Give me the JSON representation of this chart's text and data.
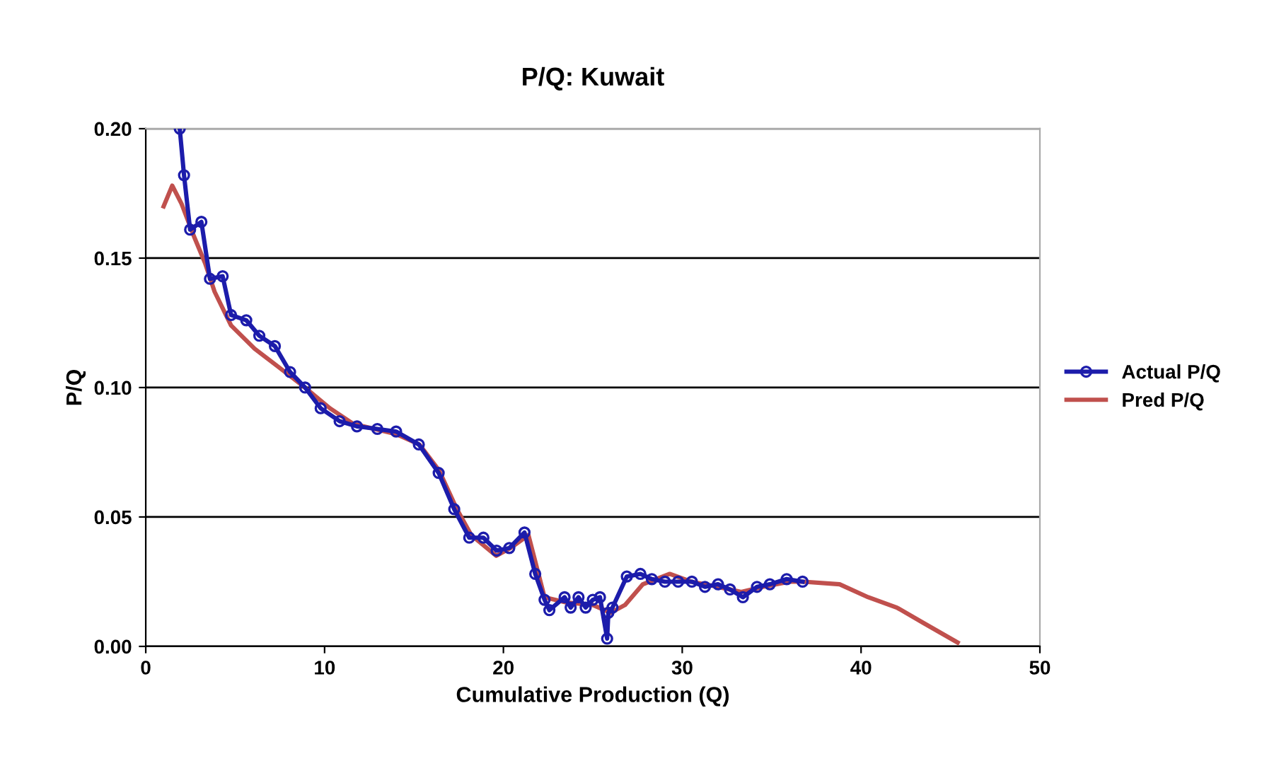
{
  "chart_data": {
    "type": "line",
    "title": "P/Q: Kuwait",
    "xlabel": "Cumulative Production (Q)",
    "ylabel": "P/Q",
    "xlim": [
      0,
      50
    ],
    "xticks": [
      0,
      10,
      20,
      30,
      40,
      50
    ],
    "ylim": [
      0,
      0.2
    ],
    "yticks": [
      {
        "value": 0,
        "label": "0.00"
      },
      {
        "value": 0.05,
        "label": "0.05"
      },
      {
        "value": 0.1,
        "label": "0.10"
      },
      {
        "value": 0.15,
        "label": "0.15"
      },
      {
        "value": 0.2,
        "label": "0.20"
      }
    ],
    "grid": "y",
    "legend": "right",
    "series": [
      {
        "name": "Actual P/Q",
        "color": "#1c1cab",
        "marker": "circle",
        "x": [
          1.9,
          2.14,
          2.48,
          3.11,
          3.59,
          4.3,
          4.77,
          5.62,
          6.35,
          7.22,
          8.07,
          8.91,
          9.78,
          10.84,
          11.81,
          12.95,
          14.0,
          15.27,
          16.38,
          17.25,
          18.09,
          18.88,
          19.62,
          20.33,
          21.18,
          21.78,
          22.3,
          22.57,
          23.42,
          23.76,
          24.2,
          24.6,
          25.0,
          25.4,
          25.8,
          25.87,
          26.1,
          26.9,
          27.66,
          28.3,
          29.03,
          29.77,
          30.54,
          31.27,
          32.0,
          32.67,
          33.39,
          34.18,
          34.9,
          35.84,
          36.73
        ],
        "values": [
          0.2,
          0.182,
          0.161,
          0.164,
          0.142,
          0.143,
          0.128,
          0.126,
          0.12,
          0.116,
          0.106,
          0.1,
          0.092,
          0.087,
          0.085,
          0.084,
          0.083,
          0.078,
          0.067,
          0.053,
          0.042,
          0.042,
          0.037,
          0.038,
          0.044,
          0.028,
          0.018,
          0.014,
          0.019,
          0.015,
          0.019,
          0.015,
          0.018,
          0.019,
          0.003,
          0.013,
          0.015,
          0.027,
          0.028,
          0.026,
          0.025,
          0.025,
          0.025,
          0.023,
          0.024,
          0.022,
          0.019,
          0.023,
          0.024,
          0.026,
          0.025
        ]
      },
      {
        "name": "Pred P/Q",
        "color": "#c0504d",
        "marker": "none",
        "x": [
          1.0,
          1.48,
          2.0,
          2.66,
          3.32,
          3.85,
          4.77,
          6.09,
          7.41,
          8.9,
          10.3,
          11.6,
          14.0,
          15.3,
          16.4,
          17.4,
          18.2,
          19.6,
          20.4,
          21.4,
          22.3,
          23.5,
          25.0,
          26.0,
          26.8,
          27.8,
          29.3,
          30.5,
          32.0,
          33.3,
          34.5,
          36.0,
          36.8,
          38.8,
          40.4,
          42.0,
          43.5,
          45.4
        ],
        "values": [
          0.17,
          0.178,
          0.171,
          0.159,
          0.148,
          0.137,
          0.124,
          0.115,
          0.108,
          0.1,
          0.092,
          0.086,
          0.082,
          0.078,
          0.068,
          0.053,
          0.043,
          0.035,
          0.038,
          0.043,
          0.019,
          0.017,
          0.016,
          0.013,
          0.016,
          0.024,
          0.028,
          0.025,
          0.023,
          0.021,
          0.023,
          0.025,
          0.025,
          0.024,
          0.019,
          0.015,
          0.009,
          0.0015
        ]
      }
    ]
  }
}
